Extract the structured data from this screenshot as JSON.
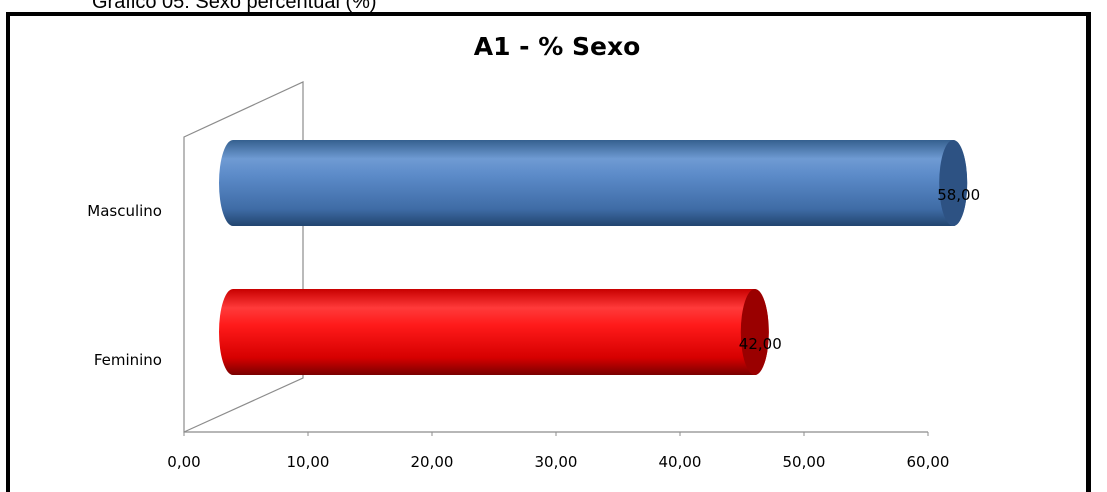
{
  "caption": "Gráfico 05: Sexo percentual (%)",
  "chart_data": {
    "type": "bar",
    "orientation": "horizontal",
    "style": "3d-cylinder",
    "title": "A1 - % Sexo",
    "categories": [
      "Masculino",
      "Feminino"
    ],
    "values": [
      58.0,
      42.0
    ],
    "data_labels": [
      "58,00",
      "42,00"
    ],
    "colors": [
      "#4f81bd",
      "#ff0000"
    ],
    "xlim": [
      0,
      60
    ],
    "x_ticks": [
      {
        "value": 0,
        "label": "0,00"
      },
      {
        "value": 10,
        "label": "10,00"
      },
      {
        "value": 20,
        "label": "20,00"
      },
      {
        "value": 30,
        "label": "30,00"
      },
      {
        "value": 40,
        "label": "40,00"
      },
      {
        "value": 50,
        "label": "50,00"
      },
      {
        "value": 60,
        "label": "60,00"
      }
    ],
    "xlabel": "",
    "ylabel": "",
    "grid": false,
    "legend": "none"
  }
}
